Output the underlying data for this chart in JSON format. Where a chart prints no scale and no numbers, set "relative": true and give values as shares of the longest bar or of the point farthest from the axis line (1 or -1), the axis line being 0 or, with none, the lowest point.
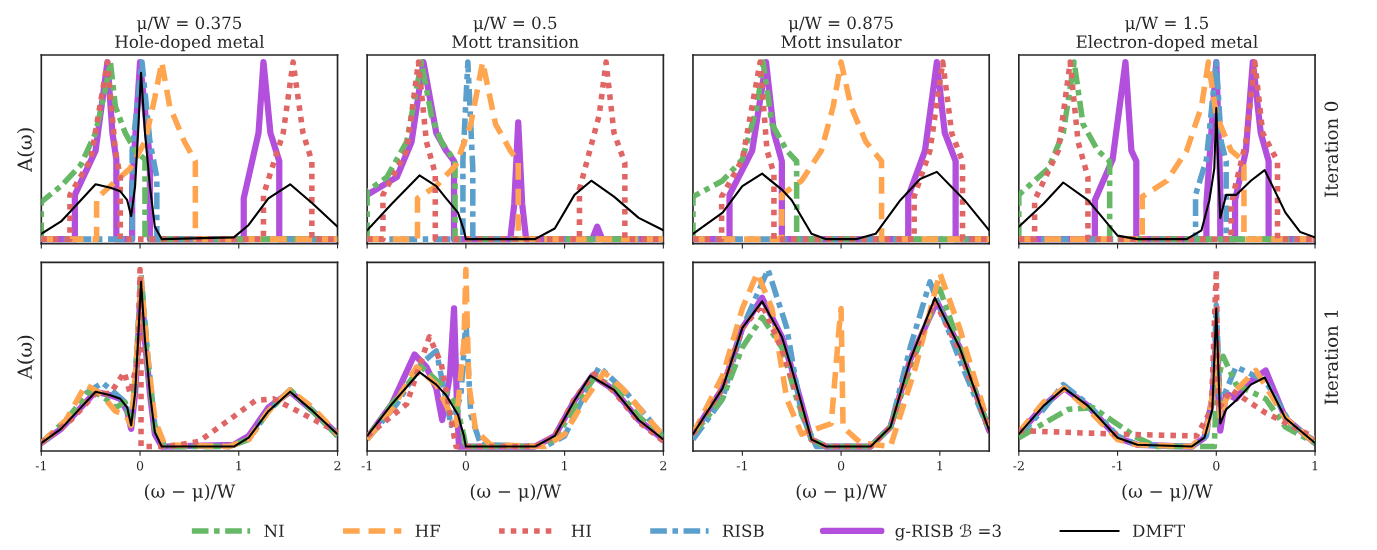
{
  "chart_data": [
    {
      "type": "line",
      "title": "μ/W = 0.375",
      "subtitle": "Hole-doped metal",
      "ylabel": "A(ω)",
      "legend": "bottom",
      "relative": true,
      "xlim": [
        -1,
        2
      ],
      "xticks": [
        -1,
        0,
        1,
        2
      ],
      "tick_labels": false,
      "series": [
        {
          "name": "NI",
          "color": "#66b866",
          "line_style": "dashdot",
          "x": [
            -1,
            -1,
            -0.8,
            -0.6,
            -0.45,
            -0.35,
            -0.3,
            -0.25,
            -0.15,
            -0.05,
            0.05,
            0.05,
            2
          ],
          "values": [
            0,
            0.21,
            0.3,
            0.42,
            0.6,
            0.85,
            1,
            0.75,
            0.6,
            0.5,
            0.45,
            0,
            0
          ]
        },
        {
          "name": "HF",
          "color": "#ffa54f",
          "line_style": "dashed",
          "x": [
            -1,
            -0.44,
            -0.44,
            -0.3,
            -0.1,
            0.05,
            0.15,
            0.22,
            0.3,
            0.45,
            0.56,
            0.56,
            2
          ],
          "values": [
            0,
            0,
            0.23,
            0.3,
            0.4,
            0.55,
            0.8,
            1,
            0.75,
            0.55,
            0.44,
            0,
            0
          ]
        },
        {
          "name": "HI",
          "color": "#e06666",
          "line_style": "dotted",
          "x": [
            -1,
            -0.71,
            -0.71,
            -0.5,
            -0.33,
            -0.25,
            -0.2,
            -0.2,
            1.25,
            1.25,
            1.45,
            1.55,
            1.65,
            1.74,
            1.74,
            2
          ],
          "values": [
            0,
            0,
            0.25,
            0.45,
            1,
            0.5,
            0.35,
            0,
            0,
            0.25,
            0.6,
            1,
            0.6,
            0.44,
            0,
            0
          ]
        },
        {
          "name": "RISB",
          "color": "#5b9fcc",
          "line_style": "dashdot",
          "x": [
            -1,
            -0.08,
            -0.08,
            0,
            0.02,
            0.1,
            0.17,
            0.17,
            2
          ],
          "values": [
            0,
            0,
            0.5,
            0.9,
            1,
            0.55,
            0.35,
            0,
            0
          ]
        },
        {
          "name": "g-RISB ℬ =3",
          "color": "#b24fdc",
          "line_style": "solid",
          "x": [
            -1,
            -0.66,
            -0.66,
            -0.45,
            -0.33,
            -0.28,
            -0.24,
            -0.24,
            -0.08,
            -0.08,
            0,
            0.1,
            0.1,
            1.05,
            1.05,
            1.2,
            1.25,
            1.32,
            1.41,
            1.41,
            2
          ],
          "values": [
            0,
            0,
            0.25,
            0.5,
            1,
            0.6,
            0.45,
            0,
            0,
            0.3,
            1,
            0.45,
            0,
            0,
            0.23,
            0.6,
            1,
            0.6,
            0.44,
            0,
            0
          ]
        },
        {
          "name": "DMFT",
          "color": "#000000",
          "line_style": "solid",
          "x": [
            -1,
            -0.8,
            -0.6,
            -0.45,
            -0.3,
            -0.2,
            -0.13,
            -0.09,
            -0.05,
            -0.02,
            0.01,
            0.05,
            0.1,
            0.15,
            0.22,
            0.95,
            1.1,
            1.3,
            1.52,
            1.75,
            2
          ],
          "values": [
            0.03,
            0.1,
            0.22,
            0.31,
            0.29,
            0.27,
            0.22,
            0.13,
            0.3,
            0.6,
            0.94,
            0.6,
            0.3,
            0.07,
            0,
            0.01,
            0.08,
            0.23,
            0.31,
            0.2,
            0.07
          ]
        }
      ]
    },
    {
      "type": "line",
      "title": "μ/W = 0.5",
      "subtitle": "Mott transition",
      "relative": true,
      "xlim": [
        -1,
        2
      ],
      "xticks": [
        -1,
        0,
        1,
        2
      ],
      "tick_labels": false,
      "series": [
        {
          "color": "#66b866",
          "line_style": "dashdot",
          "x": [
            -1,
            -1,
            -0.8,
            -0.6,
            -0.45,
            -0.35,
            -0.25,
            -0.11,
            -0.11,
            2
          ],
          "values": [
            0,
            0.27,
            0.35,
            0.55,
            1,
            0.7,
            0.55,
            0.44,
            0,
            0
          ]
        },
        {
          "color": "#ffa54f",
          "line_style": "dashed",
          "x": [
            -1,
            -0.49,
            -0.49,
            -0.3,
            -0.1,
            0.05,
            0.17,
            0.3,
            0.45,
            0.53,
            0.53,
            2
          ],
          "values": [
            0,
            0,
            0.23,
            0.3,
            0.42,
            0.65,
            1,
            0.65,
            0.5,
            0.44,
            0,
            0
          ]
        },
        {
          "color": "#e06666",
          "line_style": "dotted",
          "x": [
            -1,
            -0.84,
            -0.84,
            -0.6,
            -0.48,
            -0.4,
            -0.31,
            -0.31,
            1.15,
            1.15,
            1.35,
            1.42,
            1.5,
            1.61,
            1.61,
            2
          ],
          "values": [
            0,
            0,
            0.25,
            0.5,
            1,
            0.55,
            0.37,
            0,
            0,
            0.28,
            0.7,
            1,
            0.6,
            0.43,
            0,
            0
          ]
        },
        {
          "color": "#5b9fcc",
          "line_style": "dashdot",
          "x": [
            -1,
            -0.03,
            -0.03,
            0.02,
            0.07,
            0.07,
            2
          ],
          "values": [
            0,
            0,
            0.45,
            1,
            0.4,
            0,
            0
          ]
        },
        {
          "color": "#b24fdc",
          "line_style": "solid",
          "x": [
            -1,
            -0.7,
            -0.55,
            -0.43,
            -0.3,
            -0.2,
            -0.12,
            -0.12,
            0.45,
            0.49,
            0.53,
            0.57,
            0.61,
            1.28,
            1.33,
            1.38,
            2
          ],
          "values": [
            0.25,
            0.35,
            0.55,
            1,
            0.6,
            0.5,
            0.44,
            0,
            0,
            0.2,
            0.66,
            0.2,
            0,
            0,
            0.07,
            0,
            0
          ]
        },
        {
          "color": "#000000",
          "line_style": "solid",
          "x": [
            -1,
            -0.75,
            -0.47,
            -0.3,
            -0.2,
            -0.08,
            -0.02,
            0,
            0.7,
            0.9,
            1.1,
            1.27,
            1.5,
            1.75,
            2
          ],
          "values": [
            0.05,
            0.2,
            0.36,
            0.3,
            0.23,
            0.15,
            0.05,
            0,
            0,
            0.06,
            0.25,
            0.33,
            0.24,
            0.12,
            0.05
          ]
        }
      ]
    },
    {
      "type": "line",
      "title": "μ/W = 0.875",
      "subtitle": "Mott insulator",
      "relative": true,
      "xlim": [
        -1.5,
        1.5
      ],
      "xticks": [
        -1,
        0,
        1
      ],
      "tick_labels": false,
      "series": [
        {
          "color": "#66b866",
          "line_style": "dashdot",
          "x": [
            -1.5,
            -1.5,
            -1.2,
            -1,
            -0.85,
            -0.79,
            -0.7,
            -0.55,
            -0.45,
            -0.45,
            1.5
          ],
          "values": [
            0,
            0.24,
            0.33,
            0.45,
            0.75,
            1,
            0.65,
            0.5,
            0.44,
            0,
            0
          ]
        },
        {
          "color": "#ffa54f",
          "line_style": "dashed",
          "x": [
            -1.5,
            -0.6,
            -0.6,
            -0.4,
            -0.2,
            -0.08,
            0,
            0.1,
            0.25,
            0.41,
            0.41,
            1.5
          ],
          "values": [
            0,
            0,
            0.25,
            0.33,
            0.5,
            0.75,
            1,
            0.75,
            0.55,
            0.44,
            0,
            0
          ]
        },
        {
          "color": "#e06666",
          "line_style": "dotted",
          "x": [
            -1.5,
            -1.21,
            -1.21,
            -1,
            -0.82,
            -0.75,
            -0.68,
            -0.68,
            0.74,
            0.74,
            0.9,
            1.03,
            1.12,
            1.23,
            1.23,
            1.5
          ],
          "values": [
            0,
            0,
            0.24,
            0.45,
            1,
            0.5,
            0.37,
            0,
            0,
            0.24,
            0.5,
            1,
            0.6,
            0.44,
            0,
            0
          ]
        },
        {
          "color": "#5b9fcc",
          "line_style": "dashdot",
          "x": [
            -1.5,
            1.5
          ],
          "values": [
            0,
            0
          ]
        },
        {
          "color": "#b24fdc",
          "line_style": "solid",
          "x": [
            -1.5,
            -1.13,
            -1.13,
            -0.9,
            -0.76,
            -0.68,
            -0.6,
            -0.6,
            0.68,
            0.68,
            0.85,
            0.97,
            1.05,
            1.16,
            1.16,
            1.5
          ],
          "values": [
            0,
            0,
            0.25,
            0.5,
            1,
            0.6,
            0.44,
            0,
            0,
            0.24,
            0.5,
            1,
            0.6,
            0.44,
            0,
            0
          ]
        },
        {
          "color": "#000000",
          "line_style": "solid",
          "x": [
            -1.5,
            -1.2,
            -1,
            -0.8,
            -0.6,
            -0.5,
            -0.3,
            -0.15,
            0.15,
            0.35,
            0.6,
            0.8,
            0.97,
            1.25,
            1.5
          ],
          "values": [
            0.03,
            0.15,
            0.3,
            0.37,
            0.28,
            0.22,
            0.03,
            0,
            0,
            0.03,
            0.22,
            0.34,
            0.38,
            0.22,
            0.05
          ]
        }
      ]
    },
    {
      "type": "line",
      "title": "μ/W = 1.5",
      "subtitle": "Electron-doped metal",
      "annotations": [
        "Iteration 0"
      ],
      "relative": true,
      "xlim": [
        -2,
        1
      ],
      "xticks": [
        -2,
        -1,
        0,
        1
      ],
      "tick_labels": false,
      "series": [
        {
          "color": "#66b866",
          "line_style": "dashdot",
          "x": [
            -2,
            -2,
            -1.7,
            -1.55,
            -1.44,
            -1.35,
            -1.2,
            -1.08,
            -1.08,
            1
          ],
          "values": [
            0,
            0.25,
            0.4,
            0.6,
            1,
            0.65,
            0.5,
            0.44,
            0,
            0
          ]
        },
        {
          "color": "#ffa54f",
          "line_style": "dashed",
          "x": [
            -2,
            -0.75,
            -0.75,
            -0.5,
            -0.3,
            -0.15,
            -0.08,
            0,
            0.15,
            0.28,
            0.28,
            1
          ],
          "values": [
            0,
            0,
            0.24,
            0.33,
            0.5,
            0.75,
            1,
            0.7,
            0.5,
            0.44,
            0,
            0
          ]
        },
        {
          "color": "#e06666",
          "line_style": "dotted",
          "x": [
            -2,
            -1.84,
            -1.84,
            -1.6,
            -1.48,
            -1.4,
            -1.3,
            -1.3,
            0.15,
            0.15,
            0.3,
            0.39,
            0.47,
            0.62,
            0.62,
            1
          ],
          "values": [
            0,
            0,
            0.22,
            0.5,
            1,
            0.55,
            0.35,
            0,
            0,
            0.2,
            0.55,
            1,
            0.6,
            0.44,
            0,
            0
          ]
        },
        {
          "color": "#5b9fcc",
          "line_style": "dashdot",
          "x": [
            -2,
            -0.21,
            -0.21,
            -0.1,
            0,
            0.05,
            0.1,
            0.1,
            1
          ],
          "values": [
            0,
            0,
            0.25,
            0.45,
            1,
            0.55,
            0.44,
            0,
            0
          ]
        },
        {
          "color": "#b24fdc",
          "line_style": "solid",
          "x": [
            -2,
            -1.23,
            -1.23,
            -1.05,
            -0.92,
            -0.86,
            -0.81,
            -0.81,
            -0.1,
            -0.1,
            0,
            0.04,
            0.04,
            0.19,
            0.19,
            0.3,
            0.37,
            0.45,
            0.53,
            0.53,
            1
          ],
          "values": [
            0,
            0,
            0.22,
            0.45,
            1,
            0.5,
            0.44,
            0,
            0,
            0.2,
            1,
            0.3,
            0,
            0,
            0.22,
            0.5,
            1,
            0.6,
            0.44,
            0,
            0
          ]
        },
        {
          "color": "#000000",
          "line_style": "solid",
          "x": [
            -2,
            -1.75,
            -1.55,
            -1.3,
            -1,
            -0.8,
            -0.3,
            -0.15,
            -0.07,
            -0.02,
            0,
            0.02,
            0.04,
            0.1,
            0.2,
            0.35,
            0.49,
            0.7,
            0.85,
            1
          ],
          "values": [
            0.07,
            0.2,
            0.32,
            0.22,
            0.02,
            0,
            0,
            0.05,
            0.22,
            0.4,
            0.74,
            0.4,
            0.12,
            0.25,
            0.25,
            0.33,
            0.39,
            0.15,
            0.04,
            0.01
          ]
        }
      ]
    },
    {
      "type": "line",
      "xlabel": "(ω − μ)/W",
      "ylabel": "A(ω)",
      "relative": true,
      "xlim": [
        -1,
        2
      ],
      "xticks": [
        -1,
        0,
        1,
        2
      ],
      "tick_labels": "x",
      "series": [
        {
          "color": "#66b866",
          "line_style": "dashdot",
          "x": [
            -1,
            -0.75,
            -0.5,
            -0.35,
            -0.25,
            -0.15,
            -0.09,
            -0.04,
            0.01,
            0.08,
            0.15,
            0.25,
            0.9,
            1.1,
            1.3,
            1.52,
            1.75,
            2
          ],
          "values": [
            0.02,
            0.15,
            0.32,
            0.27,
            0.22,
            0.25,
            0.12,
            0.45,
            0.96,
            0.45,
            0.1,
            0,
            0,
            0.04,
            0.2,
            0.32,
            0.2,
            0.06
          ]
        },
        {
          "color": "#ffa54f",
          "line_style": "dashed",
          "x": [
            -1,
            -0.75,
            -0.55,
            -0.4,
            -0.25,
            -0.15,
            -0.09,
            -0.04,
            0.01,
            0.08,
            0.15,
            0.25,
            0.9,
            1.1,
            1.3,
            1.52,
            1.75,
            2
          ],
          "values": [
            0.02,
            0.15,
            0.35,
            0.3,
            0.2,
            0.18,
            0.12,
            0.45,
            0.95,
            0.5,
            0.15,
            0.01,
            0,
            0.04,
            0.2,
            0.32,
            0.22,
            0.07
          ]
        },
        {
          "color": "#e06666",
          "line_style": "dotted",
          "x": [
            -1,
            -0.7,
            -0.45,
            -0.3,
            -0.16,
            -0.1,
            -0.02,
            0,
            0.01,
            0.01,
            0.3,
            0.6,
            0.9,
            1.17,
            1.35,
            1.6,
            2
          ],
          "values": [
            0.02,
            0.15,
            0.3,
            0.3,
            0.42,
            0.3,
            0.5,
            1,
            0.5,
            0,
            0,
            0.03,
            0.15,
            0.26,
            0.27,
            0.2,
            0.08
          ]
        },
        {
          "color": "#5b9fcc",
          "line_style": "dashdot",
          "x": [
            -1,
            -0.75,
            -0.55,
            -0.38,
            -0.25,
            -0.15,
            -0.09,
            -0.04,
            0.01,
            0.08,
            0.15,
            0.25,
            0.9,
            1.1,
            1.3,
            1.52,
            1.75,
            2
          ],
          "values": [
            0.02,
            0.13,
            0.3,
            0.36,
            0.3,
            0.25,
            0.13,
            0.45,
            0.97,
            0.5,
            0.12,
            0,
            0,
            0.04,
            0.2,
            0.32,
            0.2,
            0.06
          ]
        },
        {
          "color": "#b24fdc",
          "line_style": "solid",
          "x": [
            -1,
            -0.8,
            -0.6,
            -0.45,
            -0.3,
            -0.2,
            -0.13,
            -0.09,
            -0.05,
            -0.02,
            0.01,
            0.05,
            0.1,
            0.15,
            0.22,
            0.95,
            1.1,
            1.3,
            1.52,
            1.75,
            2
          ],
          "values": [
            0.02,
            0.1,
            0.22,
            0.31,
            0.29,
            0.27,
            0.2,
            0.1,
            0.3,
            0.6,
            0.93,
            0.6,
            0.3,
            0.07,
            0,
            0.01,
            0.06,
            0.22,
            0.31,
            0.2,
            0.07
          ]
        },
        {
          "color": "#000000",
          "line_style": "solid",
          "x": [
            -1,
            -0.8,
            -0.6,
            -0.45,
            -0.3,
            -0.2,
            -0.13,
            -0.09,
            -0.05,
            -0.02,
            0.01,
            0.05,
            0.1,
            0.15,
            0.22,
            0.95,
            1.1,
            1.3,
            1.52,
            1.75,
            2
          ],
          "values": [
            0.02,
            0.1,
            0.22,
            0.31,
            0.29,
            0.27,
            0.22,
            0.12,
            0.3,
            0.6,
            0.93,
            0.6,
            0.3,
            0.08,
            0,
            0,
            0.05,
            0.2,
            0.31,
            0.2,
            0.07
          ]
        }
      ]
    },
    {
      "type": "line",
      "xlabel": "(ω − μ)/W",
      "relative": true,
      "xlim": [
        -1,
        2
      ],
      "xticks": [
        -1,
        0,
        1,
        2
      ],
      "tick_labels": "x",
      "series": [
        {
          "color": "#66b866",
          "line_style": "dashdot",
          "x": [
            -1,
            -0.75,
            -0.45,
            -0.25,
            -0.1,
            -0.02,
            0,
            0.7,
            0.9,
            1.1,
            1.3,
            1.5,
            1.75,
            2
          ],
          "values": [
            0.05,
            0.24,
            0.45,
            0.35,
            0.24,
            0.06,
            0,
            0,
            0.04,
            0.22,
            0.39,
            0.34,
            0.17,
            0.05
          ]
        },
        {
          "color": "#ffa54f",
          "line_style": "dashed",
          "x": [
            -1,
            -0.75,
            -0.5,
            -0.3,
            -0.1,
            -0.02,
            0,
            0.03,
            0.1,
            0.25,
            0.8,
            1,
            1.2,
            1.4,
            1.6,
            2
          ],
          "values": [
            0.04,
            0.21,
            0.45,
            0.35,
            0.12,
            0.59,
            1,
            0.35,
            0.09,
            0.01,
            0,
            0.07,
            0.26,
            0.42,
            0.32,
            0.06
          ]
        },
        {
          "color": "#e06666",
          "line_style": "dotted",
          "x": [
            -1,
            -0.6,
            -0.37,
            -0.25,
            -0.12,
            -0.1,
            0.7,
            0.9,
            1.1,
            1.3,
            1.5,
            1.75,
            2
          ],
          "values": [
            0.06,
            0.24,
            0.62,
            0.47,
            0.06,
            0,
            0,
            0.06,
            0.27,
            0.41,
            0.31,
            0.14,
            0.03
          ]
        },
        {
          "color": "#5b9fcc",
          "line_style": "dashdot",
          "x": [
            -1,
            -0.7,
            -0.45,
            -0.3,
            -0.15,
            -0.05,
            0,
            0.05,
            0.15,
            0.8,
            1,
            1.2,
            1.35,
            1.6,
            2
          ],
          "values": [
            0.04,
            0.24,
            0.47,
            0.54,
            0.12,
            0.29,
            0.71,
            0.18,
            0.01,
            0,
            0.06,
            0.29,
            0.45,
            0.32,
            0.06
          ]
        },
        {
          "color": "#b24fdc",
          "line_style": "solid",
          "x": [
            -1,
            -0.75,
            -0.52,
            -0.4,
            -0.3,
            -0.24,
            -0.16,
            -0.12,
            -0.09,
            -0.07,
            0.7,
            0.9,
            1.1,
            1.28,
            1.5,
            1.75,
            2
          ],
          "values": [
            0.05,
            0.24,
            0.52,
            0.45,
            0.33,
            0.15,
            0.41,
            0.78,
            0.24,
            0,
            0,
            0.06,
            0.26,
            0.4,
            0.32,
            0.15,
            0.04
          ]
        },
        {
          "color": "#000000",
          "line_style": "solid",
          "x": [
            -1,
            -0.75,
            -0.47,
            -0.3,
            -0.2,
            -0.08,
            -0.02,
            0,
            0.7,
            0.9,
            1.1,
            1.26,
            1.5,
            1.75,
            2
          ],
          "values": [
            0.06,
            0.24,
            0.42,
            0.35,
            0.29,
            0.18,
            0.06,
            0,
            0,
            0.06,
            0.26,
            0.4,
            0.32,
            0.15,
            0.04
          ]
        }
      ]
    },
    {
      "type": "line",
      "xlabel": "(ω − μ)/W",
      "relative": true,
      "xlim": [
        -1.5,
        1.5
      ],
      "xticks": [
        -1,
        0,
        1
      ],
      "tick_labels": "x",
      "series": [
        {
          "color": "#66b866",
          "line_style": "dashdot",
          "x": [
            -1.5,
            -1.2,
            -1,
            -0.8,
            -0.6,
            -0.45,
            -0.3,
            -0.15,
            0.3,
            0.5,
            0.7,
            1,
            1.25,
            1.5
          ],
          "values": [
            0.07,
            0.27,
            0.56,
            0.73,
            0.56,
            0.27,
            0.04,
            0,
            0,
            0.11,
            0.44,
            0.89,
            0.49,
            0.09
          ]
        },
        {
          "color": "#ffa54f",
          "line_style": "dashed",
          "x": [
            -1.5,
            -1.2,
            -1,
            -0.85,
            -0.7,
            -0.55,
            -0.4,
            -0.1,
            -0.02,
            0,
            0.02,
            0.2,
            0.5,
            0.75,
            1,
            1.2,
            1.5
          ],
          "values": [
            0.07,
            0.4,
            0.78,
            0.98,
            0.78,
            0.27,
            0.07,
            0.13,
            0.67,
            0.78,
            0.11,
            0.02,
            0,
            0.44,
            0.98,
            0.67,
            0.11
          ]
        },
        {
          "color": "#e06666",
          "line_style": "dotted",
          "x": [
            -1.5,
            -1.2,
            -1,
            -0.8,
            -0.6,
            -0.3,
            -0.15,
            0.3,
            0.5,
            0.7,
            0.95,
            1.2,
            1.5
          ],
          "values": [
            0.07,
            0.33,
            0.67,
            0.8,
            0.55,
            0.04,
            0,
            0,
            0.11,
            0.47,
            0.82,
            0.54,
            0.09
          ]
        },
        {
          "color": "#5b9fcc",
          "line_style": "dashdot",
          "x": [
            -1.5,
            -1.2,
            -1,
            -0.74,
            -0.55,
            -0.4,
            -0.25,
            0.3,
            0.5,
            0.7,
            0.9,
            1.2,
            1.5
          ],
          "values": [
            0.04,
            0.27,
            0.67,
            1,
            0.67,
            0.18,
            0,
            0,
            0.11,
            0.56,
            0.93,
            0.49,
            0.09
          ]
        },
        {
          "color": "#b24fdc",
          "line_style": "solid",
          "x": [
            -1.5,
            -1.2,
            -1,
            -0.8,
            -0.6,
            -0.5,
            -0.3,
            -0.15,
            0.3,
            0.5,
            0.7,
            0.97,
            1.2,
            1.5
          ],
          "values": [
            0.07,
            0.33,
            0.67,
            0.84,
            0.62,
            0.44,
            0.04,
            0,
            0,
            0.11,
            0.49,
            0.82,
            0.56,
            0.09
          ]
        },
        {
          "color": "#000000",
          "line_style": "solid",
          "x": [
            -1.5,
            -1.2,
            -1,
            -0.8,
            -0.6,
            -0.5,
            -0.3,
            -0.15,
            0.3,
            0.5,
            0.7,
            0.95,
            1.2,
            1.5
          ],
          "values": [
            0.07,
            0.33,
            0.67,
            0.82,
            0.62,
            0.44,
            0.04,
            0,
            0,
            0.11,
            0.49,
            0.84,
            0.56,
            0.09
          ]
        }
      ]
    },
    {
      "type": "line",
      "xlabel": "(ω − μ)/W",
      "annotations": [
        "Iteration 1"
      ],
      "relative": true,
      "xlim": [
        -2,
        1
      ],
      "xticks": [
        -2,
        -1,
        0,
        1
      ],
      "tick_labels": "x",
      "series": [
        {
          "color": "#66b866",
          "line_style": "dashdot",
          "x": [
            -2,
            -1.5,
            -1.25,
            -0.8,
            -0.6,
            -0.02,
            0,
            0.07,
            0.2,
            0.5,
            0.7,
            1
          ],
          "values": [
            0.05,
            0.21,
            0.22,
            0.05,
            0,
            0,
            0.32,
            0.51,
            0.35,
            0.27,
            0.11,
            0.02
          ]
        },
        {
          "color": "#ffa54f",
          "line_style": "dashed",
          "x": [
            -2,
            -1.75,
            -1.54,
            -1.3,
            -1,
            -0.8,
            -0.25,
            -0.1,
            -0.03,
            0,
            0.04,
            0.1,
            0.2,
            0.4,
            0.7,
            1
          ],
          "values": [
            0.08,
            0.25,
            0.33,
            0.21,
            0.04,
            0.01,
            0,
            0.09,
            0.32,
            0.59,
            0.16,
            0.27,
            0.32,
            0.43,
            0.16,
            0.02
          ]
        },
        {
          "color": "#e06666",
          "line_style": "dotted",
          "x": [
            -2,
            -1,
            -0.2,
            -0.05,
            0,
            0.02,
            0.15,
            0.5,
            1
          ],
          "values": [
            0.09,
            0.07,
            0.06,
            0.21,
            1,
            0.21,
            0.32,
            0.19,
            0.05
          ]
        },
        {
          "color": "#5b9fcc",
          "line_style": "dashdot",
          "x": [
            -2,
            -1.75,
            -1.55,
            -1.3,
            -1,
            -0.8,
            -0.25,
            -0.1,
            -0.03,
            0,
            0.04,
            0.1,
            0.2,
            0.5,
            0.75,
            1
          ],
          "values": [
            0.06,
            0.21,
            0.35,
            0.24,
            0.06,
            0.01,
            0,
            0.06,
            0.32,
            0.8,
            0.21,
            0.32,
            0.45,
            0.37,
            0.13,
            0.03
          ]
        },
        {
          "color": "#b24fdc",
          "line_style": "solid",
          "x": [
            -2,
            -1.75,
            -1.54,
            -1.3,
            -1,
            -0.8,
            -0.25,
            -0.12,
            -0.04,
            0,
            0.04,
            0.1,
            0.2,
            0.35,
            0.5,
            0.7,
            1
          ],
          "values": [
            0.07,
            0.23,
            0.33,
            0.23,
            0.05,
            0.01,
            0,
            0.05,
            0.27,
            0.64,
            0.09,
            0.3,
            0.27,
            0.37,
            0.43,
            0.16,
            0.02
          ]
        },
        {
          "color": "#000000",
          "line_style": "solid",
          "x": [
            -2,
            -1.75,
            -1.54,
            -1.3,
            -1,
            -0.8,
            -0.25,
            -0.12,
            -0.04,
            0,
            0.04,
            0.1,
            0.2,
            0.35,
            0.49,
            0.7,
            1
          ],
          "values": [
            0.07,
            0.23,
            0.33,
            0.23,
            0.05,
            0.01,
            0,
            0.05,
            0.21,
            0.78,
            0.13,
            0.21,
            0.26,
            0.35,
            0.39,
            0.16,
            0.02
          ]
        }
      ]
    }
  ]
}
